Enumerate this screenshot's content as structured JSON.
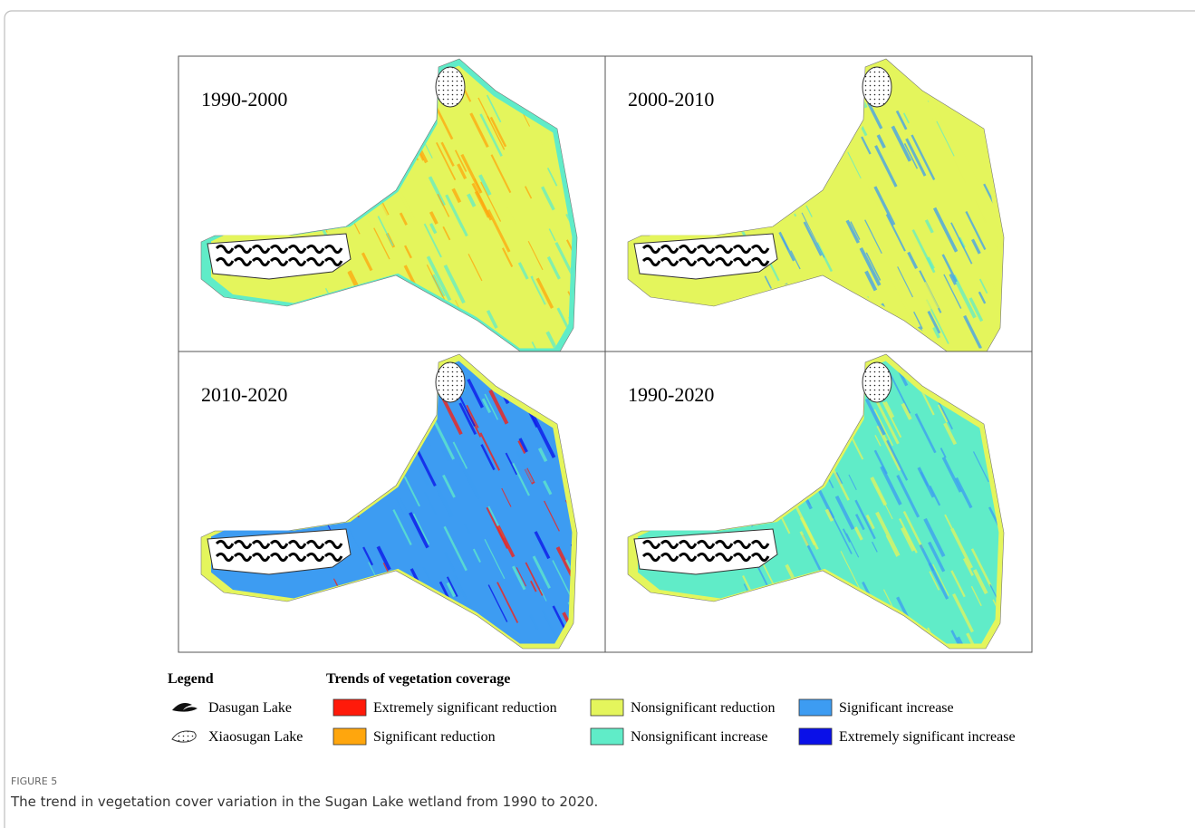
{
  "panels": [
    {
      "label": "1990-2000"
    },
    {
      "label": "2000-2010"
    },
    {
      "label": "2010-2020"
    },
    {
      "label": "1990-2020"
    }
  ],
  "legend": {
    "title": "Legend",
    "lakes": [
      {
        "label": "Dasugan Lake"
      },
      {
        "label": "Xiaosugan Lake"
      }
    ],
    "trends_title": "Trends of vegetation coverage",
    "trends": [
      {
        "label": "Extremely significant reduction",
        "color": "#ff1a0a"
      },
      {
        "label": "Significant reduction",
        "color": "#ffa60d"
      },
      {
        "label": "Nonsignificant reduction",
        "color": "#e4f55c"
      },
      {
        "label": "Nonsignificant increase",
        "color": "#60ecc8"
      },
      {
        "label": "Significant increase",
        "color": "#3d9cf2"
      },
      {
        "label": "Extremely significant increase",
        "color": "#0a10e8"
      }
    ]
  },
  "caption": {
    "label": "FIGURE 5",
    "text": "The trend in vegetation cover variation in the Sugan Lake wetland from 1990 to 2020."
  }
}
